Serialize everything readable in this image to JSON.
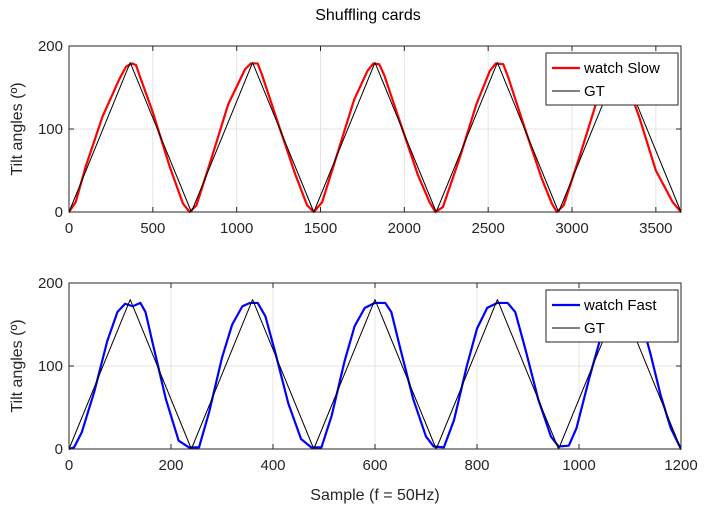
{
  "figure": {
    "title": "Shuffling cards",
    "background": "#ffffff"
  },
  "chart_data": [
    {
      "type": "line",
      "title": "Shuffling cards",
      "xlabel": "",
      "ylabel": "Tilt angles (º)",
      "xlim": [
        0,
        3650
      ],
      "ylim": [
        0,
        200
      ],
      "xticks": [
        0,
        500,
        1000,
        1500,
        2000,
        2500,
        3000,
        3500
      ],
      "yticks": [
        0,
        100,
        200
      ],
      "grid": true,
      "legend_position": "top-right",
      "series": [
        {
          "name": "watch Slow",
          "color": "#ff0000",
          "points": [
            [
              0,
              0
            ],
            [
              40,
              12
            ],
            [
              100,
              55
            ],
            [
              200,
              115
            ],
            [
              300,
              160
            ],
            [
              340,
              175
            ],
            [
              375,
              179
            ],
            [
              400,
              177
            ],
            [
              420,
              165
            ],
            [
              500,
              120
            ],
            [
              600,
              55
            ],
            [
              680,
              10
            ],
            [
              720,
              0
            ],
            [
              760,
              8
            ],
            [
              850,
              65
            ],
            [
              950,
              130
            ],
            [
              1050,
              172
            ],
            [
              1085,
              179
            ],
            [
              1125,
              179
            ],
            [
              1150,
              166
            ],
            [
              1250,
              105
            ],
            [
              1350,
              45
            ],
            [
              1420,
              8
            ],
            [
              1460,
              0
            ],
            [
              1510,
              12
            ],
            [
              1600,
              70
            ],
            [
              1700,
              135
            ],
            [
              1780,
              170
            ],
            [
              1815,
              179
            ],
            [
              1850,
              178
            ],
            [
              1880,
              165
            ],
            [
              1980,
              105
            ],
            [
              2080,
              45
            ],
            [
              2150,
              12
            ],
            [
              2185,
              0
            ],
            [
              2230,
              6
            ],
            [
              2330,
              65
            ],
            [
              2430,
              130
            ],
            [
              2510,
              170
            ],
            [
              2545,
              179
            ],
            [
              2590,
              178
            ],
            [
              2620,
              162
            ],
            [
              2720,
              100
            ],
            [
              2820,
              40
            ],
            [
              2880,
              10
            ],
            [
              2910,
              0
            ],
            [
              2950,
              8
            ],
            [
              3050,
              70
            ],
            [
              3150,
              135
            ],
            [
              3230,
              168
            ],
            [
              3265,
              175
            ],
            [
              3300,
              170
            ],
            [
              3400,
              115
            ],
            [
              3500,
              50
            ],
            [
              3600,
              12
            ],
            [
              3650,
              0
            ]
          ]
        },
        {
          "name": "GT",
          "color": "#000000",
          "points": [
            [
              0,
              0
            ],
            [
              365,
              180
            ],
            [
              730,
              0
            ],
            [
              1095,
              180
            ],
            [
              1460,
              0
            ],
            [
              1825,
              180
            ],
            [
              2190,
              0
            ],
            [
              2555,
              180
            ],
            [
              2920,
              0
            ],
            [
              3285,
              180
            ],
            [
              3650,
              0
            ]
          ]
        }
      ]
    },
    {
      "type": "line",
      "title": "",
      "xlabel": "Sample (f = 50Hz)",
      "ylabel": "Tilt angles (º)",
      "xlim": [
        0,
        1200
      ],
      "ylim": [
        0,
        200
      ],
      "xticks": [
        0,
        200,
        400,
        600,
        800,
        1000,
        1200
      ],
      "yticks": [
        0,
        100,
        200
      ],
      "grid": true,
      "legend_position": "top-right",
      "series": [
        {
          "name": "watch Fast",
          "color": "#0000ff",
          "points": [
            [
              0,
              0
            ],
            [
              10,
              2
            ],
            [
              25,
              20
            ],
            [
              50,
              70
            ],
            [
              75,
              130
            ],
            [
              95,
              165
            ],
            [
              110,
              175
            ],
            [
              125,
              172
            ],
            [
              140,
              176
            ],
            [
              150,
              165
            ],
            [
              165,
              125
            ],
            [
              190,
              60
            ],
            [
              215,
              10
            ],
            [
              235,
              2
            ],
            [
              255,
              2
            ],
            [
              275,
              45
            ],
            [
              300,
              110
            ],
            [
              320,
              150
            ],
            [
              340,
              172
            ],
            [
              355,
              176
            ],
            [
              370,
              176
            ],
            [
              385,
              160
            ],
            [
              405,
              115
            ],
            [
              430,
              55
            ],
            [
              455,
              12
            ],
            [
              475,
              2
            ],
            [
              495,
              2
            ],
            [
              515,
              40
            ],
            [
              540,
              105
            ],
            [
              560,
              148
            ],
            [
              580,
              170
            ],
            [
              600,
              176
            ],
            [
              620,
              176
            ],
            [
              632,
              165
            ],
            [
              650,
              120
            ],
            [
              675,
              60
            ],
            [
              700,
              15
            ],
            [
              715,
              3
            ],
            [
              735,
              2
            ],
            [
              755,
              35
            ],
            [
              780,
              100
            ],
            [
              800,
              145
            ],
            [
              820,
              170
            ],
            [
              840,
              176
            ],
            [
              860,
              176
            ],
            [
              875,
              165
            ],
            [
              895,
              120
            ],
            [
              920,
              60
            ],
            [
              945,
              15
            ],
            [
              960,
              3
            ],
            [
              980,
              4
            ],
            [
              995,
              25
            ],
            [
              1020,
              85
            ],
            [
              1045,
              140
            ],
            [
              1065,
              170
            ],
            [
              1080,
              176
            ],
            [
              1100,
              176
            ],
            [
              1120,
              160
            ],
            [
              1140,
              115
            ],
            [
              1160,
              65
            ],
            [
              1180,
              25
            ],
            [
              1200,
              0
            ]
          ]
        },
        {
          "name": "GT",
          "color": "#000000",
          "points": [
            [
              0,
              0
            ],
            [
              120,
              180
            ],
            [
              240,
              0
            ],
            [
              360,
              180
            ],
            [
              480,
              0
            ],
            [
              600,
              180
            ],
            [
              720,
              0
            ],
            [
              840,
              180
            ],
            [
              960,
              0
            ],
            [
              1080,
              180
            ],
            [
              1200,
              0
            ]
          ]
        }
      ]
    }
  ]
}
